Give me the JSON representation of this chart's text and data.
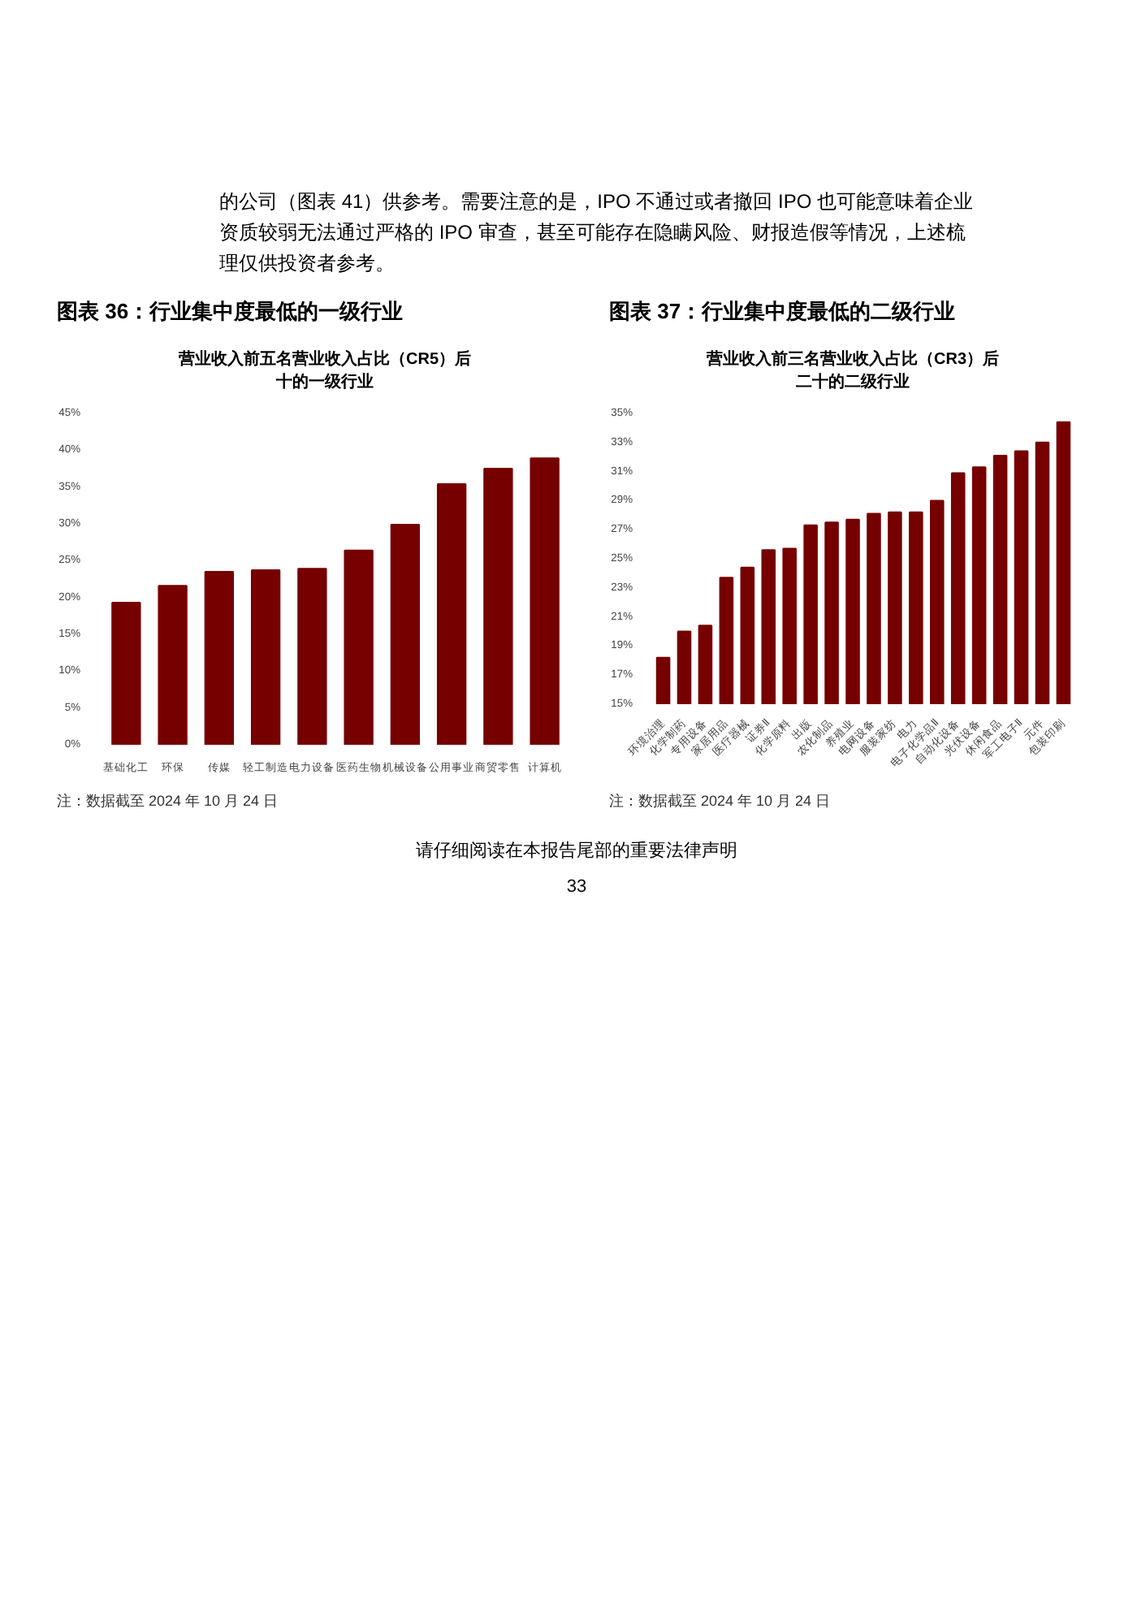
{
  "chart_data": [
    {
      "type": "other",
      "annotations": [
        "的公司（图表 41）供参考。需要注意的是，IPO 不通过或者撤回 IPO 也可能意味着企业资质较弱无法通过严格的 IPO 审查，甚至可能存在隐瞒风险、财报造假等情况，上述梳理仅供投资者参考。"
      ]
    },
    {
      "type": "bar",
      "title": "图表 36：行业集中度最低的一级行业",
      "subtitle": "营业收入前五名营业收入占比（CR5）后十的一级行业",
      "categories": [
        "基础化工",
        "环保",
        "传媒",
        "轻工制造",
        "电力设备",
        "医药生物",
        "机械设备",
        "公用事业",
        "商贸零售",
        "计算机"
      ],
      "values": [
        19.3,
        21.6,
        23.5,
        23.7,
        23.9,
        26.4,
        29.9,
        35.4,
        37.5,
        38.9
      ],
      "color": "#760000",
      "ylim": [
        0,
        45
      ],
      "yticks": [
        {
          "value": 0,
          "label": "0%"
        },
        {
          "value": 5,
          "label": "5%"
        },
        {
          "value": 10,
          "label": "10%"
        },
        {
          "value": 15,
          "label": "15%"
        },
        {
          "value": 20,
          "label": "20%"
        },
        {
          "value": 25,
          "label": "25%"
        },
        {
          "value": 30,
          "label": "30%"
        },
        {
          "value": 35,
          "label": "35%"
        },
        {
          "value": 40,
          "label": "40%"
        },
        {
          "value": 45,
          "label": "45%"
        }
      ],
      "grid": false,
      "annotations": [
        "注：数据截至 2024 年 10 月 24 日"
      ]
    },
    {
      "type": "bar",
      "title": "图表 37：行业集中度最低的二级行业",
      "subtitle": "营业收入前三名营业收入占比（CR3）后二十的二级行业",
      "categories": [
        "环境治理",
        "化学制药",
        "专用设备",
        "家居用品",
        "医疗器械",
        "证券Ⅱ",
        "化学原料",
        "出版",
        "农化制品",
        "养殖业",
        "电网设备",
        "服装家纺",
        "电力",
        "电子化学品Ⅱ",
        "自动化设备",
        "光伏设备",
        "休闲食品",
        "军工电子Ⅱ",
        "元件",
        "包装印刷"
      ],
      "values": [
        18.2,
        20.0,
        20.4,
        23.7,
        24.4,
        25.6,
        25.7,
        27.3,
        27.5,
        27.7,
        28.1,
        28.2,
        28.2,
        29.0,
        30.9,
        31.3,
        32.1,
        32.4,
        33.0,
        34.4
      ],
      "color": "#760000",
      "ylim": [
        15,
        35
      ],
      "yticks": [
        {
          "value": 15,
          "label": "15%"
        },
        {
          "value": 17,
          "label": "17%"
        },
        {
          "value": 19,
          "label": "19%"
        },
        {
          "value": 21,
          "label": "21%"
        },
        {
          "value": 23,
          "label": "23%"
        },
        {
          "value": 25,
          "label": "25%"
        },
        {
          "value": 27,
          "label": "27%"
        },
        {
          "value": 29,
          "label": "29%"
        },
        {
          "value": 31,
          "label": "31%"
        },
        {
          "value": 33,
          "label": "33%"
        },
        {
          "value": 35,
          "label": "35%"
        }
      ],
      "grid": false,
      "annotations": [
        "注：数据截至 2024 年 10 月 24 日"
      ]
    },
    {
      "type": "other",
      "annotations": [
        "请仔细阅读在本报告尾部的重要法律声明",
        "33"
      ]
    }
  ]
}
